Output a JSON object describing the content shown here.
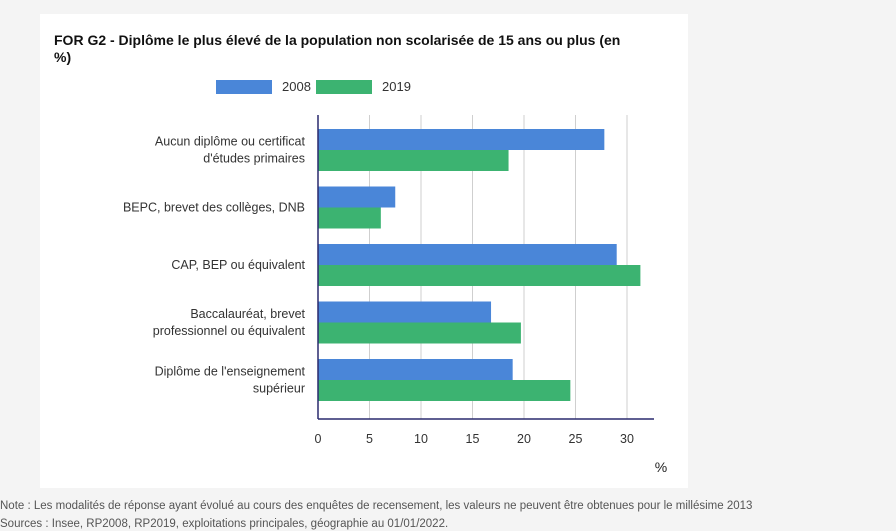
{
  "chart_data": {
    "type": "bar",
    "orientation": "horizontal",
    "title": "FOR G2 - Diplôme le plus élevé de la population non scolarisée de 15 ans ou plus (en %)",
    "categories": [
      [
        "Aucun diplôme ou certificat",
        "d'études primaires"
      ],
      [
        "BEPC, brevet des collèges, DNB"
      ],
      [
        "CAP, BEP ou équivalent"
      ],
      [
        "Baccalauréat, brevet",
        "professionnel ou équivalent"
      ],
      [
        "Diplôme de l'enseignement",
        "supérieur"
      ]
    ],
    "series": [
      {
        "name": "2008",
        "color": "#4a86d8",
        "values": [
          27.8,
          7.5,
          29.0,
          16.8,
          18.9
        ]
      },
      {
        "name": "2019",
        "color": "#3cb371",
        "values": [
          18.5,
          6.1,
          31.3,
          19.7,
          24.5
        ]
      }
    ],
    "xticks": [
      0,
      5,
      10,
      15,
      20,
      25,
      30
    ],
    "xlim": [
      0,
      32.5
    ],
    "xlabel": "%",
    "grid": true,
    "legend": "top"
  },
  "notes": {
    "note": "Note : Les modalités de réponse ayant évolué au cours des enquêtes de recensement, les valeurs ne peuvent être obtenues pour le millésime 2013",
    "sources": "Sources : Insee, RP2008, RP2019, exploitations principales, géographie au 01/01/2022."
  }
}
